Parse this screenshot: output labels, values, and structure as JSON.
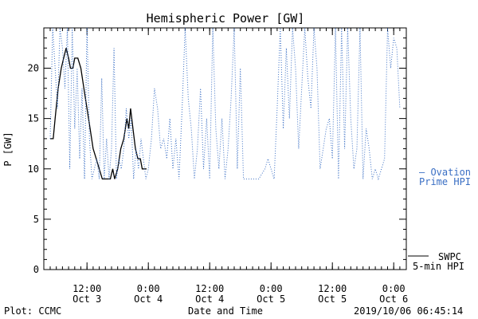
{
  "chart_data": {
    "type": "line",
    "title": "Hemispheric Power [GW]",
    "xlabel": "Date and Time",
    "ylabel": "P [GW]",
    "ylim": [
      0,
      24
    ],
    "xlim": [
      0,
      57
    ],
    "y_ticks": [
      0,
      5,
      10,
      15,
      20
    ],
    "x_ticks": [
      {
        "x": 6,
        "label1": "12:00",
        "label2": "Oct 3"
      },
      {
        "x": 16,
        "label1": "0:00",
        "label2": "Oct 4"
      },
      {
        "x": 26,
        "label1": "12:00",
        "label2": "Oct 4"
      },
      {
        "x": 36,
        "label1": "0:00",
        "label2": "Oct 5"
      },
      {
        "x": 46,
        "label1": "12:00",
        "label2": "Oct 5"
      },
      {
        "x": 56,
        "label1": "0:00",
        "label2": "Oct 6"
      }
    ],
    "series": [
      {
        "name": "SWPC 5-min HPI",
        "legend_lines": [
          "SWPC",
          "5-min HPI"
        ],
        "color": "#000000",
        "style": "solid",
        "points": [
          [
            0,
            13
          ],
          [
            0.5,
            13
          ],
          [
            0.8,
            15
          ],
          [
            1.3,
            18
          ],
          [
            1.8,
            20
          ],
          [
            2.2,
            21
          ],
          [
            2.6,
            22
          ],
          [
            3.0,
            21
          ],
          [
            3.3,
            20
          ],
          [
            3.7,
            20
          ],
          [
            4.0,
            21
          ],
          [
            4.5,
            21
          ],
          [
            5.0,
            20
          ],
          [
            5.5,
            18
          ],
          [
            6.0,
            16
          ],
          [
            6.5,
            14
          ],
          [
            7.0,
            12
          ],
          [
            7.5,
            11
          ],
          [
            8.0,
            10
          ],
          [
            8.5,
            9
          ],
          [
            9.2,
            9
          ],
          [
            9.8,
            9
          ],
          [
            10.2,
            10
          ],
          [
            10.5,
            9
          ],
          [
            11.0,
            10
          ],
          [
            11.5,
            12
          ],
          [
            12.0,
            13
          ],
          [
            12.5,
            15
          ],
          [
            12.8,
            14
          ],
          [
            13.1,
            16
          ],
          [
            13.5,
            14
          ],
          [
            13.9,
            12
          ],
          [
            14.3,
            11
          ],
          [
            14.7,
            11
          ],
          [
            15.0,
            10
          ],
          [
            15.5,
            10
          ],
          [
            15.7,
            10
          ]
        ]
      },
      {
        "name": "Ovation Prime HPI",
        "legend_lines": [
          "— Ovation",
          "Prime HPI"
        ],
        "color": "#3a6fc4",
        "style": "dotted",
        "points": [
          [
            0,
            13
          ],
          [
            0.4,
            24
          ],
          [
            0.8,
            20
          ],
          [
            1.2,
            16
          ],
          [
            1.6,
            24
          ],
          [
            2.0,
            22
          ],
          [
            2.4,
            18
          ],
          [
            2.8,
            24
          ],
          [
            3.2,
            10
          ],
          [
            3.6,
            24
          ],
          [
            4.0,
            14
          ],
          [
            4.4,
            20
          ],
          [
            4.8,
            11
          ],
          [
            5.2,
            18
          ],
          [
            5.6,
            9
          ],
          [
            6.0,
            24
          ],
          [
            6.4,
            13
          ],
          [
            6.8,
            9
          ],
          [
            7.2,
            10
          ],
          [
            7.6,
            11
          ],
          [
            8.0,
            9
          ],
          [
            8.4,
            19
          ],
          [
            8.8,
            9
          ],
          [
            9.2,
            13
          ],
          [
            9.6,
            9
          ],
          [
            10.0,
            12
          ],
          [
            10.4,
            22
          ],
          [
            10.8,
            9
          ],
          [
            11.2,
            11
          ],
          [
            11.6,
            10
          ],
          [
            12.0,
            12
          ],
          [
            12.4,
            16
          ],
          [
            12.8,
            13
          ],
          [
            13.2,
            15
          ],
          [
            13.6,
            9
          ],
          [
            14.0,
            12
          ],
          [
            14.4,
            10
          ],
          [
            14.8,
            13
          ],
          [
            15.2,
            11
          ],
          [
            15.6,
            9
          ],
          [
            16.0,
            10
          ],
          [
            16.5,
            13
          ],
          [
            17.0,
            18
          ],
          [
            17.5,
            16
          ],
          [
            18.0,
            12
          ],
          [
            18.5,
            13
          ],
          [
            19.0,
            11
          ],
          [
            19.5,
            15
          ],
          [
            20.0,
            10
          ],
          [
            20.5,
            13
          ],
          [
            21.0,
            9
          ],
          [
            21.5,
            16
          ],
          [
            22.0,
            24
          ],
          [
            22.5,
            17
          ],
          [
            23.0,
            14
          ],
          [
            23.5,
            9
          ],
          [
            24.0,
            12
          ],
          [
            24.5,
            18
          ],
          [
            25.0,
            10
          ],
          [
            25.5,
            15
          ],
          [
            26.0,
            9
          ],
          [
            26.5,
            24
          ],
          [
            27.0,
            14
          ],
          [
            27.5,
            10
          ],
          [
            28.0,
            15
          ],
          [
            28.5,
            9
          ],
          [
            29.0,
            12
          ],
          [
            29.5,
            17
          ],
          [
            30.0,
            24
          ],
          [
            30.5,
            10
          ],
          [
            31.0,
            20
          ],
          [
            31.5,
            9
          ],
          [
            32.0,
            9
          ],
          [
            33.0,
            9
          ],
          [
            34.0,
            9
          ],
          [
            35.0,
            10
          ],
          [
            35.5,
            11
          ],
          [
            36.0,
            10
          ],
          [
            36.5,
            9
          ],
          [
            37.0,
            16
          ],
          [
            37.5,
            24
          ],
          [
            38.0,
            14
          ],
          [
            38.5,
            22
          ],
          [
            39.0,
            15
          ],
          [
            39.5,
            24
          ],
          [
            40.0,
            20
          ],
          [
            40.5,
            12
          ],
          [
            41.0,
            18
          ],
          [
            41.5,
            24
          ],
          [
            42.0,
            19
          ],
          [
            42.5,
            16
          ],
          [
            43.0,
            24
          ],
          [
            43.5,
            20
          ],
          [
            44.0,
            10
          ],
          [
            44.5,
            12
          ],
          [
            45.0,
            14
          ],
          [
            45.5,
            15
          ],
          [
            46.0,
            11
          ],
          [
            46.5,
            24
          ],
          [
            47.0,
            9
          ],
          [
            47.5,
            24
          ],
          [
            48.0,
            12
          ],
          [
            48.5,
            24
          ],
          [
            49.0,
            15
          ],
          [
            49.5,
            10
          ],
          [
            50.0,
            12
          ],
          [
            50.5,
            24
          ],
          [
            51.0,
            9
          ],
          [
            51.5,
            14
          ],
          [
            52.0,
            12
          ],
          [
            52.5,
            9
          ],
          [
            53.0,
            10
          ],
          [
            53.5,
            9
          ],
          [
            54.0,
            10
          ],
          [
            54.5,
            11
          ],
          [
            55.0,
            24
          ],
          [
            55.5,
            20
          ],
          [
            56.0,
            23
          ],
          [
            56.5,
            22
          ],
          [
            57.0,
            16
          ]
        ]
      }
    ],
    "footer_left": "Plot: CCMC",
    "footer_right": "2019/10/06 06:45:14",
    "grid": false,
    "legend_position": "right"
  }
}
